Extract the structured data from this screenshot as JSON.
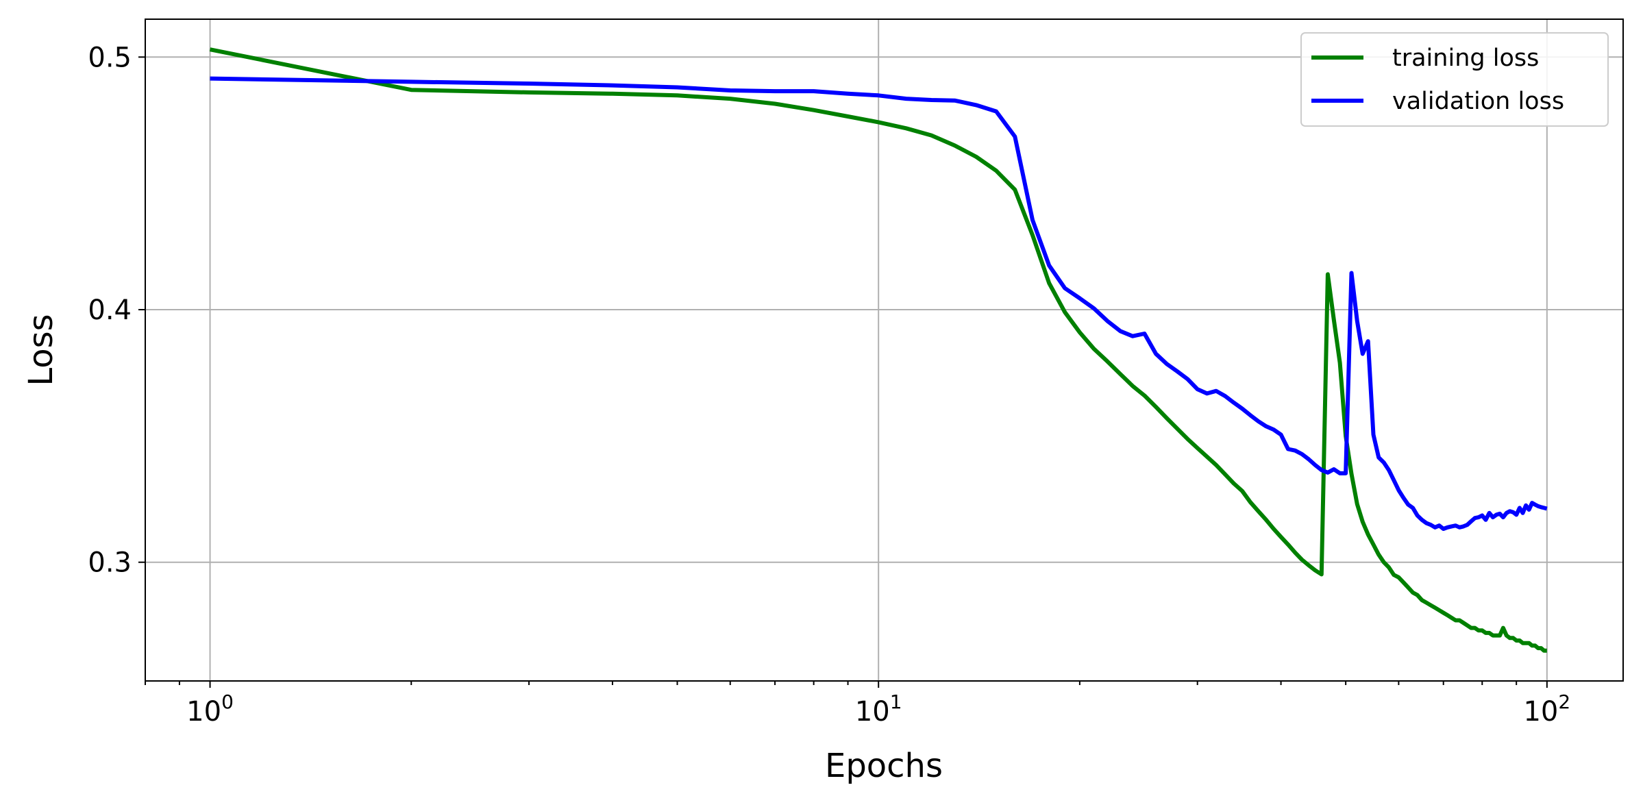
{
  "chart_data": {
    "type": "line",
    "title": "",
    "xlabel": "Epochs",
    "ylabel": "Loss",
    "x_scale": "log",
    "xlim": [
      0.8,
      130
    ],
    "ylim": [
      0.253,
      0.515
    ],
    "grid": true,
    "legend_position": "top-right",
    "x_ticks": [
      {
        "value": 1,
        "base": "10",
        "exp": "0"
      },
      {
        "value": 10,
        "base": "10",
        "exp": "1"
      },
      {
        "value": 100,
        "base": "10",
        "exp": "2"
      }
    ],
    "y_ticks": [
      {
        "value": 0.3,
        "label": "0.3"
      },
      {
        "value": 0.4,
        "label": "0.4"
      },
      {
        "value": 0.5,
        "label": "0.5"
      }
    ],
    "series": [
      {
        "name": "training loss",
        "color": "#008000",
        "x": [
          1,
          2,
          3,
          4,
          5,
          6,
          7,
          8,
          9,
          10,
          11,
          12,
          13,
          14,
          15,
          16,
          17,
          18,
          19,
          20,
          21,
          22,
          23,
          24,
          25,
          26,
          27,
          28,
          29,
          30,
          31,
          32,
          33,
          34,
          35,
          36,
          37,
          38,
          39,
          40,
          41,
          42,
          43,
          44,
          45,
          46,
          47,
          48,
          49,
          50,
          51,
          52,
          53,
          54,
          55,
          56,
          57,
          58,
          59,
          60,
          61,
          62,
          63,
          64,
          65,
          66,
          67,
          68,
          69,
          70,
          71,
          72,
          73,
          74,
          75,
          76,
          77,
          78,
          79,
          80,
          81,
          82,
          83,
          84,
          85,
          86,
          87,
          88,
          89,
          90,
          91,
          92,
          93,
          94,
          95,
          96,
          97,
          98,
          99,
          100
        ],
        "y": [
          0.503,
          0.487,
          0.486,
          0.4855,
          0.4848,
          0.4835,
          0.4815,
          0.479,
          0.4765,
          0.4742,
          0.4718,
          0.469,
          0.465,
          0.4605,
          0.455,
          0.4475,
          0.4295,
          0.4105,
          0.399,
          0.391,
          0.3845,
          0.3795,
          0.3745,
          0.3698,
          0.366,
          0.3615,
          0.357,
          0.3528,
          0.3488,
          0.3452,
          0.3418,
          0.3385,
          0.3348,
          0.3312,
          0.3282,
          0.3238,
          0.3202,
          0.3168,
          0.3132,
          0.31,
          0.307,
          0.3038,
          0.301,
          0.2988,
          0.2968,
          0.2952,
          0.414,
          0.396,
          0.379,
          0.35,
          0.335,
          0.323,
          0.316,
          0.311,
          0.307,
          0.303,
          0.3,
          0.298,
          0.295,
          0.294,
          0.292,
          0.29,
          0.288,
          0.287,
          0.285,
          0.284,
          0.283,
          0.282,
          0.281,
          0.28,
          0.279,
          0.278,
          0.277,
          0.277,
          0.276,
          0.275,
          0.274,
          0.274,
          0.273,
          0.273,
          0.272,
          0.272,
          0.271,
          0.271,
          0.271,
          0.274,
          0.271,
          0.27,
          0.27,
          0.269,
          0.269,
          0.268,
          0.268,
          0.268,
          0.267,
          0.267,
          0.266,
          0.266,
          0.265,
          0.265
        ]
      },
      {
        "name": "validation loss",
        "color": "#0000ff",
        "x": [
          1,
          2,
          3,
          4,
          5,
          6,
          7,
          8,
          9,
          10,
          11,
          12,
          13,
          14,
          15,
          16,
          17,
          18,
          19,
          20,
          21,
          22,
          23,
          24,
          25,
          26,
          27,
          28,
          29,
          30,
          31,
          32,
          33,
          34,
          35,
          36,
          37,
          38,
          39,
          40,
          41,
          42,
          43,
          44,
          45,
          46,
          47,
          48,
          49,
          50,
          51,
          52,
          53,
          54,
          55,
          56,
          57,
          58,
          59,
          60,
          61,
          62,
          63,
          64,
          65,
          66,
          67,
          68,
          69,
          70,
          71,
          72,
          73,
          74,
          75,
          76,
          77,
          78,
          79,
          80,
          81,
          82,
          83,
          84,
          85,
          86,
          87,
          88,
          89,
          90,
          91,
          92,
          93,
          94,
          95,
          96,
          97,
          98,
          99,
          100
        ],
        "y": [
          0.4915,
          0.4902,
          0.4895,
          0.4888,
          0.488,
          0.4868,
          0.4865,
          0.4865,
          0.4855,
          0.4848,
          0.4835,
          0.483,
          0.4828,
          0.481,
          0.4785,
          0.4685,
          0.4355,
          0.4175,
          0.4085,
          0.4045,
          0.4005,
          0.3955,
          0.3915,
          0.3895,
          0.3905,
          0.3825,
          0.3785,
          0.3755,
          0.3725,
          0.3685,
          0.3668,
          0.3678,
          0.3658,
          0.3632,
          0.3608,
          0.3582,
          0.3558,
          0.3538,
          0.3525,
          0.3505,
          0.3448,
          0.3442,
          0.3428,
          0.3408,
          0.3385,
          0.3365,
          0.3355,
          0.3368,
          0.3352,
          0.3352,
          0.4145,
          0.3955,
          0.3825,
          0.3875,
          0.3505,
          0.3415,
          0.3395,
          0.3365,
          0.3325,
          0.3285,
          0.3255,
          0.3228,
          0.3215,
          0.3185,
          0.3168,
          0.3155,
          0.3148,
          0.3138,
          0.3145,
          0.3132,
          0.3138,
          0.3142,
          0.3145,
          0.3138,
          0.3142,
          0.3148,
          0.3162,
          0.3175,
          0.3178,
          0.3185,
          0.3168,
          0.3195,
          0.3178,
          0.3188,
          0.3192,
          0.3178,
          0.3195,
          0.3202,
          0.3198,
          0.3188,
          0.3215,
          0.3195,
          0.3225,
          0.3208,
          0.3235,
          0.3228,
          0.3222,
          0.3218,
          0.3215,
          0.3212
        ]
      }
    ]
  }
}
